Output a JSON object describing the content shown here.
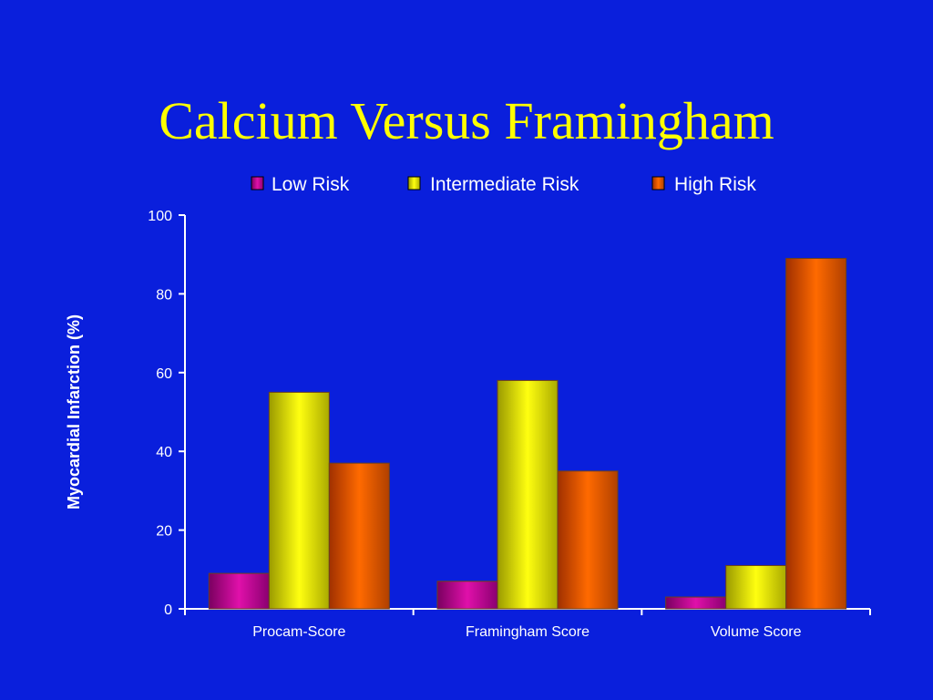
{
  "slide": {
    "title": "Calcium Versus Framingham"
  },
  "colors": {
    "background": "#0a1fdc",
    "title": "#ffff00",
    "axis": "#ffffff",
    "series": [
      "#cc0099",
      "#ffff00",
      "#ff6600"
    ]
  },
  "chart_data": {
    "type": "bar",
    "title": "",
    "xlabel": "",
    "ylabel": "Myocardial Infarction (%)",
    "ylim": [
      0,
      100
    ],
    "yticks": [
      0,
      20,
      40,
      60,
      80,
      100
    ],
    "categories": [
      "Procam-Score",
      "Framingham Score",
      "Volume Score"
    ],
    "series": [
      {
        "name": "Low Risk",
        "values": [
          9,
          7,
          3
        ]
      },
      {
        "name": "Intermediate Risk",
        "values": [
          55,
          58,
          11
        ]
      },
      {
        "name": "High Risk",
        "values": [
          37,
          35,
          89
        ]
      }
    ],
    "legend": "top",
    "grid": false
  }
}
